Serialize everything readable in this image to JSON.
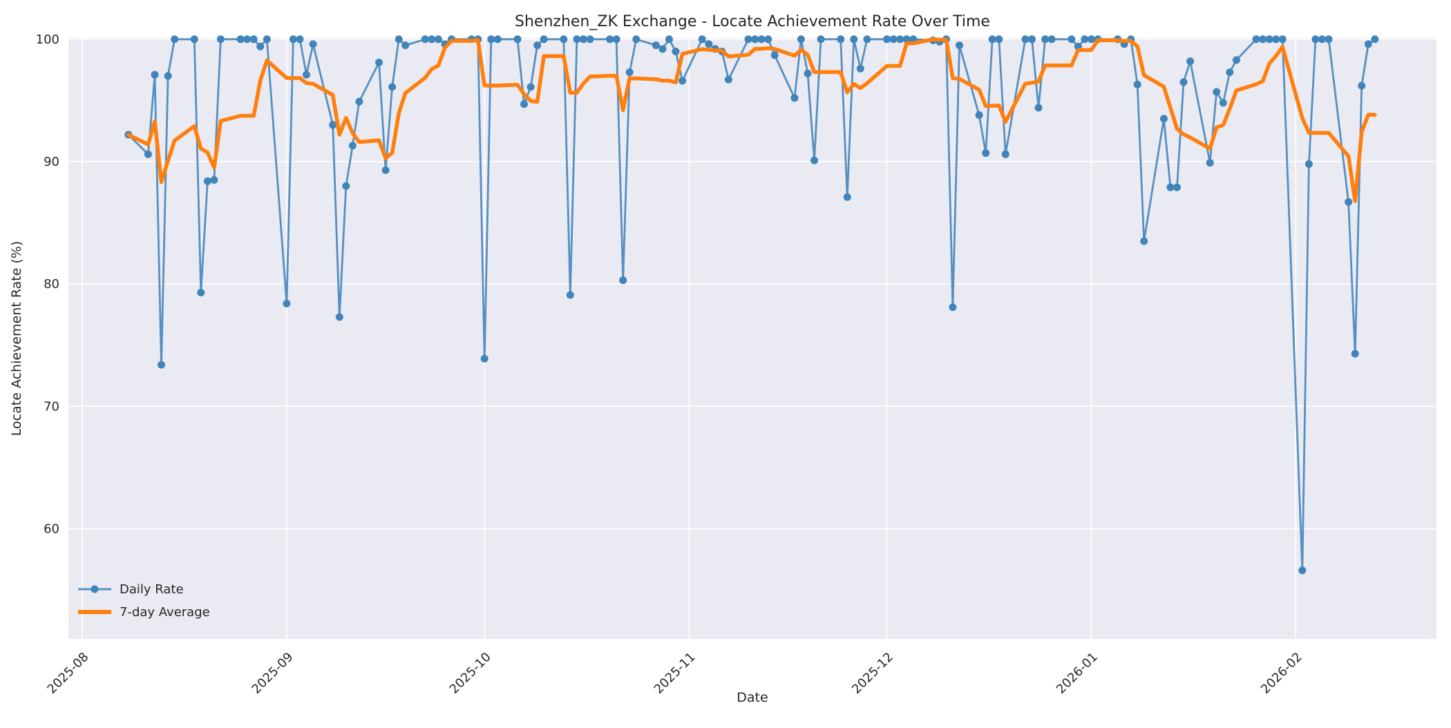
{
  "chart_data": {
    "type": "line",
    "title": "Shenzhen_ZK Exchange - Locate Achievement Rate Over Time",
    "xlabel": "Date",
    "ylabel": "Locate Achievement Rate (%)",
    "grid": true,
    "plot_background": "#eaeaf2",
    "grid_color": "#ffffff",
    "text_color": "#262626",
    "ylim": [
      51.0,
      100.1
    ],
    "y_ticks": [
      60,
      70,
      80,
      90,
      100
    ],
    "x_ticks": [
      "2025-08-01",
      "2025-09-01",
      "2025-10-01",
      "2025-11-01",
      "2025-12-01",
      "2026-01-01",
      "2026-02-01"
    ],
    "x_tick_labels": [
      "2025-08",
      "2025-09",
      "2025-10",
      "2025-11",
      "2025-12",
      "2026-01",
      "2026-02"
    ],
    "legend_position": "lower left",
    "series": [
      {
        "name": "Daily Rate",
        "color": "#568fc1",
        "marker_color": "#4184ba",
        "marker": "o",
        "linewidth": 2.8,
        "dates": [
          "2025-08-08",
          "2025-08-11",
          "2025-08-12",
          "2025-08-13",
          "2025-08-14",
          "2025-08-15",
          "2025-08-18",
          "2025-08-19",
          "2025-08-20",
          "2025-08-21",
          "2025-08-22",
          "2025-08-25",
          "2025-08-26",
          "2025-08-27",
          "2025-08-28",
          "2025-08-29",
          "2025-09-01",
          "2025-09-02",
          "2025-09-03",
          "2025-09-04",
          "2025-09-05",
          "2025-09-08",
          "2025-09-09",
          "2025-09-10",
          "2025-09-11",
          "2025-09-12",
          "2025-09-15",
          "2025-09-16",
          "2025-09-17",
          "2025-09-18",
          "2025-09-19",
          "2025-09-22",
          "2025-09-23",
          "2025-09-24",
          "2025-09-25",
          "2025-09-26",
          "2025-09-29",
          "2025-09-30",
          "2025-10-01",
          "2025-10-02",
          "2025-10-03",
          "2025-10-06",
          "2025-10-07",
          "2025-10-08",
          "2025-10-09",
          "2025-10-10",
          "2025-10-13",
          "2025-10-14",
          "2025-10-15",
          "2025-10-16",
          "2025-10-17",
          "2025-10-20",
          "2025-10-21",
          "2025-10-22",
          "2025-10-23",
          "2025-10-24",
          "2025-10-27",
          "2025-10-28",
          "2025-10-29",
          "2025-10-30",
          "2025-10-31",
          "2025-11-03",
          "2025-11-04",
          "2025-11-05",
          "2025-11-06",
          "2025-11-07",
          "2025-11-10",
          "2025-11-11",
          "2025-11-12",
          "2025-11-13",
          "2025-11-14",
          "2025-11-17",
          "2025-11-18",
          "2025-11-19",
          "2025-11-20",
          "2025-11-21",
          "2025-11-24",
          "2025-11-25",
          "2025-11-26",
          "2025-11-27",
          "2025-11-28",
          "2025-12-01",
          "2025-12-02",
          "2025-12-03",
          "2025-12-04",
          "2025-12-05",
          "2025-12-08",
          "2025-12-09",
          "2025-12-10",
          "2025-12-11",
          "2025-12-12",
          "2025-12-15",
          "2025-12-16",
          "2025-12-17",
          "2025-12-18",
          "2025-12-19",
          "2025-12-22",
          "2025-12-23",
          "2025-12-24",
          "2025-12-25",
          "2025-12-26",
          "2025-12-29",
          "2025-12-30",
          "2025-12-31",
          "2026-01-01",
          "2026-01-02",
          "2026-01-05",
          "2026-01-06",
          "2026-01-07",
          "2026-01-08",
          "2026-01-09",
          "2026-01-12",
          "2026-01-13",
          "2026-01-14",
          "2026-01-15",
          "2026-01-16",
          "2026-01-19",
          "2026-01-20",
          "2026-01-21",
          "2026-01-22",
          "2026-01-23",
          "2026-01-26",
          "2026-01-27",
          "2026-01-28",
          "2026-01-29",
          "2026-01-30",
          "2026-02-02",
          "2026-02-03",
          "2026-02-04",
          "2026-02-05",
          "2026-02-06",
          "2026-02-09",
          "2026-02-10",
          "2026-02-11",
          "2026-02-12",
          "2026-02-13"
        ],
        "values": [
          92.2,
          90.6,
          97.1,
          73.4,
          97.0,
          100,
          100,
          79.3,
          88.4,
          88.5,
          100,
          100,
          100,
          100,
          99.4,
          100,
          78.4,
          100,
          100,
          97.1,
          99.6,
          93.0,
          77.3,
          88.0,
          91.3,
          94.9,
          98.1,
          89.3,
          96.1,
          100,
          99.5,
          100,
          100,
          100,
          99.6,
          100,
          100,
          100,
          73.9,
          100,
          100,
          100,
          94.7,
          96.1,
          99.5,
          100,
          100,
          79.1,
          100,
          100,
          100,
          100,
          100,
          80.3,
          97.3,
          100,
          99.5,
          99.2,
          100,
          99.0,
          96.6,
          100,
          99.6,
          99.2,
          99.0,
          96.7,
          100,
          100,
          100,
          100,
          98.7,
          95.2,
          100,
          97.2,
          90.1,
          100,
          100,
          87.1,
          100,
          97.6,
          100,
          100,
          100,
          100,
          100,
          100,
          99.9,
          99.8,
          100,
          78.1,
          99.5,
          93.8,
          90.7,
          100,
          100,
          90.6,
          100,
          100,
          94.4,
          100,
          100,
          100,
          99.4,
          100,
          100,
          100,
          100,
          99.6,
          100,
          96.3,
          83.5,
          93.5,
          87.9,
          87.9,
          96.5,
          98.2,
          89.9,
          95.7,
          94.8,
          97.3,
          98.3,
          100,
          100,
          100,
          100,
          100,
          56.6,
          89.8,
          100,
          100,
          100,
          86.7,
          74.3,
          96.2,
          99.6,
          100
        ]
      },
      {
        "name": "7-day Average",
        "color": "#ff7f0e",
        "linewidth": 5.5,
        "derived": "trailing 7-point rolling mean of Daily Rate (min periods 1)"
      }
    ]
  }
}
